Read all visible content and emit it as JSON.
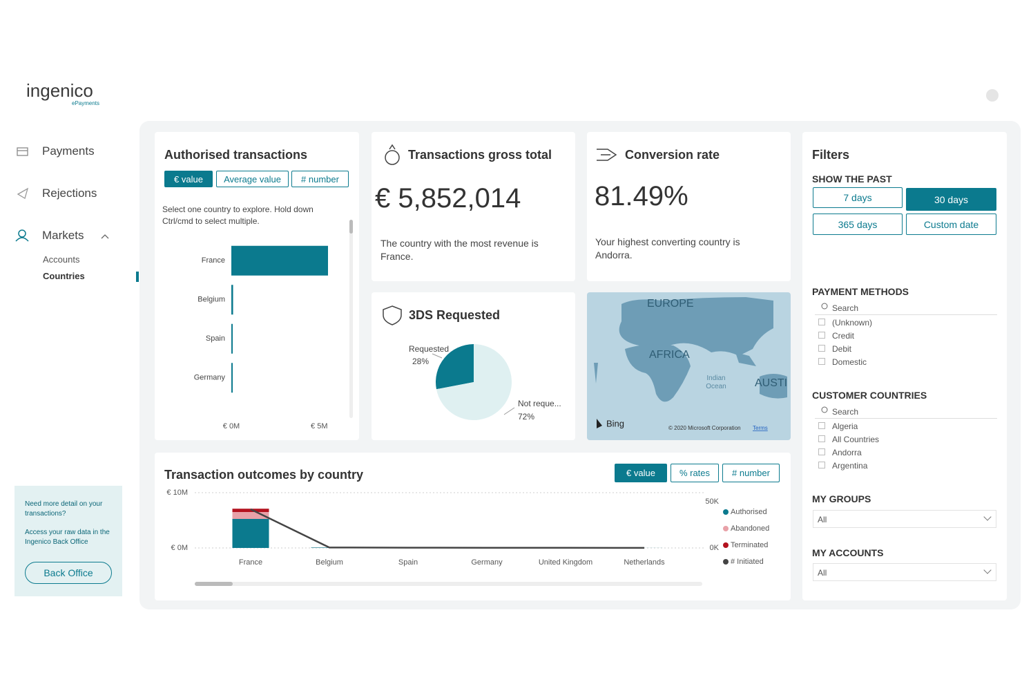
{
  "logo": {
    "name": "ingenico",
    "sub": "ePayments"
  },
  "nav": [
    {
      "label": "Payments"
    },
    {
      "label": "Rejections"
    },
    {
      "label": "Markets",
      "children": [
        "Accounts",
        "Countries"
      ]
    }
  ],
  "help": {
    "line1": "Need more detail on your transactions?",
    "line2": "Access your raw data in the Ingenico Back Office",
    "button": "Back Office"
  },
  "authorised": {
    "title": "Authorised transactions",
    "buttons": [
      "€ value",
      "Average value",
      "# number"
    ],
    "hint": "Select one country to explore. Hold down Ctrl/cmd to select multiple.",
    "chart": {
      "type": "hbar",
      "categories": [
        "France",
        "Belgium",
        "Spain",
        "Germany"
      ],
      "values": [
        5.5,
        0.1,
        0.05,
        0.05
      ],
      "color": "#0b7a8e",
      "xlim": [
        0,
        5.5
      ],
      "xticks": [
        {
          "value": 0,
          "label": "€ 0M"
        },
        {
          "value": 5,
          "label": "€ 5M"
        }
      ]
    }
  },
  "gross": {
    "title": "Transactions gross total",
    "value": "€ 5,852,014",
    "note": "The country with the most revenue is France."
  },
  "conversion": {
    "title": "Conversion rate",
    "value": "81.49%",
    "note": "Your highest converting country is Andorra."
  },
  "threeds": {
    "title": "3DS Requested",
    "chart": {
      "type": "pie",
      "categories": [
        "Requested",
        "Not reque..."
      ],
      "values": [
        28,
        72
      ],
      "value_labels": [
        "28%",
        "72%"
      ],
      "colors": [
        "#0b7a8e",
        "#dff0f1"
      ]
    }
  },
  "map": {
    "labels": [
      "EUROPE",
      "AFRICA",
      "Indian Ocean",
      "AUSTI"
    ],
    "provider": "Bing",
    "copyright": "© 2020 Microsoft Corporation",
    "terms": "Terms"
  },
  "outcomes": {
    "title": "Transaction outcomes by country",
    "buttons": [
      "€ value",
      "% rates",
      "# number"
    ],
    "chart": {
      "type": "stacked-bar-line",
      "categories": [
        "France",
        "Belgium",
        "Spain",
        "Germany",
        "United Kingdom",
        "Netherlands"
      ],
      "series": [
        {
          "name": "Authorised",
          "color": "#0b7a8e",
          "values": [
            5.25,
            0.08,
            0.02,
            0.02,
            0.01,
            0.01
          ]
        },
        {
          "name": "Abandoned",
          "color": "#e8a1a8",
          "values": [
            1.25,
            0.01,
            0,
            0,
            0,
            0
          ]
        },
        {
          "name": "Terminated",
          "color": "#b3121f",
          "values": [
            0.6,
            0,
            0,
            0,
            0,
            0
          ]
        },
        {
          "name": "# Initiated",
          "color": "#444444",
          "axis": "y2",
          "values": [
            42000,
            500,
            300,
            200,
            150,
            100
          ]
        }
      ],
      "ylim": [
        0,
        10
      ],
      "yticks": [
        {
          "value": 0,
          "label": "€ 0M"
        },
        {
          "value": 10,
          "label": "€ 10M"
        }
      ],
      "y2lim": [
        0,
        60000
      ],
      "y2ticks": [
        {
          "value": 0,
          "label": "0K"
        },
        {
          "value": 50000,
          "label": "50K"
        }
      ]
    }
  },
  "filters": {
    "title": "Filters",
    "past": {
      "heading": "SHOW THE PAST",
      "options": [
        "7 days",
        "30 days",
        "365 days",
        "Custom date"
      ]
    },
    "payment_methods": {
      "heading": "PAYMENT METHODS",
      "search": "Search",
      "items": [
        "(Unknown)",
        "Credit",
        "Debit",
        "Domestic"
      ]
    },
    "customer_countries": {
      "heading": "CUSTOMER COUNTRIES",
      "search": "Search",
      "items": [
        "Algeria",
        "All Countries",
        "Andorra",
        "Argentina"
      ]
    },
    "my_groups": {
      "heading": "MY GROUPS",
      "value": "All"
    },
    "my_accounts": {
      "heading": "MY ACCOUNTS",
      "value": "All"
    }
  }
}
